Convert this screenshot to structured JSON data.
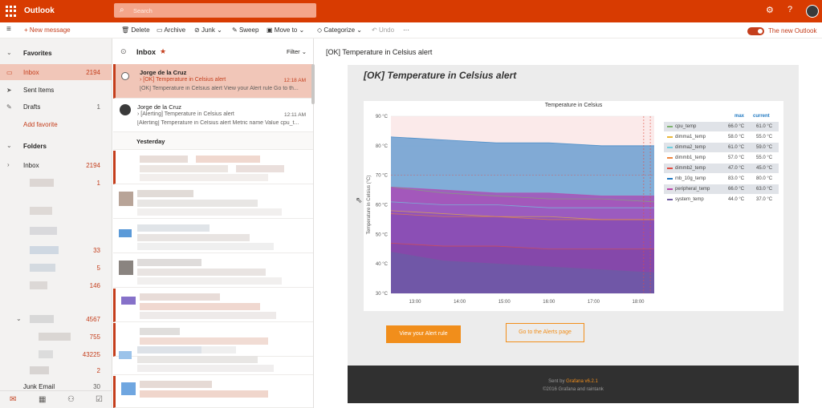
{
  "app": {
    "title": "Outlook"
  },
  "search": {
    "placeholder": "Search"
  },
  "toolbar": {
    "new_message": "New message",
    "delete": "Delete",
    "archive": "Archive",
    "junk": "Junk",
    "sweep": "Sweep",
    "move_to": "Move to",
    "categorize": "Categorize",
    "undo": "Undo",
    "more": "···",
    "new_outlook": "The new Outlook"
  },
  "sidebar": {
    "favorites": "Favorites",
    "folders": "Folders",
    "items": [
      {
        "label": "Inbox",
        "count": "2194"
      },
      {
        "label": "Sent Items",
        "count": ""
      },
      {
        "label": "Drafts",
        "count": "1"
      },
      {
        "label": "Add favorite",
        "count": ""
      }
    ],
    "folder_items": [
      {
        "label": "Inbox",
        "count": "2194"
      },
      {
        "label": "",
        "count": "1"
      },
      {
        "label": "",
        "count": "33"
      },
      {
        "label": "",
        "count": "5"
      },
      {
        "label": "",
        "count": "146"
      },
      {
        "label": "",
        "count": "4567"
      },
      {
        "label": "",
        "count": "755"
      },
      {
        "label": "",
        "count": "43225"
      },
      {
        "label": "",
        "count": "2"
      },
      {
        "label": "Junk Email",
        "count": "30"
      }
    ]
  },
  "message_list": {
    "title": "Inbox",
    "filter": "Filter",
    "group_yesterday": "Yesterday",
    "messages": [
      {
        "from": "Jorge de la Cruz",
        "subject": "[OK] Temperature in Celsius alert",
        "preview": "[OK] Temperature in Celsius alert View your Alert rule Go to th...",
        "time": "12:18 AM"
      },
      {
        "from": "Jorge de la Cruz",
        "subject": "[Alerting] Temperature in Celsius alert",
        "preview": "[Alerting] Temperature in Celsius alert Metric name Value cpu_t...",
        "time": "12:11 AM"
      }
    ]
  },
  "reading": {
    "subject": "[OK] Temperature in Celsius alert",
    "heading": "[OK] Temperature in Celsius alert",
    "button_view_rule": "View your Alert rule",
    "button_alerts_page": "Go to the Alerts page",
    "footer_sent_by": "Sent by",
    "footer_brand": "Grafana v6.2.1",
    "footer_copyright": "©2016 Grafana and raintank"
  },
  "chart_data": {
    "type": "area",
    "title": "Temperature in Celsius",
    "ylabel": "Temperature in Celsius (°C)",
    "xlabel": "",
    "ylim": [
      30,
      90
    ],
    "y_ticks": [
      "90 °C",
      "80 °C",
      "70 °C",
      "60 °C",
      "50 °C",
      "40 °C",
      "30 °C"
    ],
    "x_ticks": [
      "13:00",
      "14:00",
      "15:00",
      "16:00",
      "17:00",
      "18:00"
    ],
    "x_range": [
      "12:25",
      "18:20"
    ],
    "threshold": 70,
    "series": [
      {
        "name": "cpu_temp",
        "max": "66.0 °C",
        "current": "61.0 °C",
        "color": "#7eb26d",
        "values": [
          66,
          64,
          63,
          62,
          62,
          61
        ]
      },
      {
        "name": "dimma1_temp",
        "max": "58.0 °C",
        "current": "55.0 °C",
        "color": "#eab839",
        "values": [
          58,
          57,
          56,
          56,
          55,
          55
        ]
      },
      {
        "name": "dimma2_temp",
        "max": "61.0 °C",
        "current": "59.0 °C",
        "color": "#6ed0e0",
        "values": [
          61,
          60,
          60,
          59,
          59,
          59
        ]
      },
      {
        "name": "dimmb1_temp",
        "max": "57.0 °C",
        "current": "55.0 °C",
        "color": "#ef843c",
        "values": [
          57,
          56,
          56,
          55,
          55,
          55
        ]
      },
      {
        "name": "dimmb2_temp",
        "max": "47.0 °C",
        "current": "45.0 °C",
        "color": "#e24d42",
        "values": [
          47,
          46,
          46,
          45,
          45,
          45
        ]
      },
      {
        "name": "mb_10g_temp",
        "max": "83.0 °C",
        "current": "80.0 °C",
        "color": "#1f78c1",
        "values": [
          83,
          82,
          81,
          81,
          80,
          80
        ]
      },
      {
        "name": "peripheral_temp",
        "max": "66.0 °C",
        "current": "63.0 °C",
        "color": "#ba43a9",
        "values": [
          66,
          65,
          64,
          64,
          63,
          63
        ]
      },
      {
        "name": "system_temp",
        "max": "44.0 °C",
        "current": "37.0 °C",
        "color": "#705da0",
        "values": [
          44,
          41,
          40,
          39,
          38,
          37
        ]
      }
    ],
    "legend_headers": [
      "max",
      "current"
    ],
    "legend_position": "right",
    "grid": true
  },
  "colors": {
    "brand": "#d83b01",
    "accent": "#c43e1c",
    "grafana": "#f18e1b"
  }
}
